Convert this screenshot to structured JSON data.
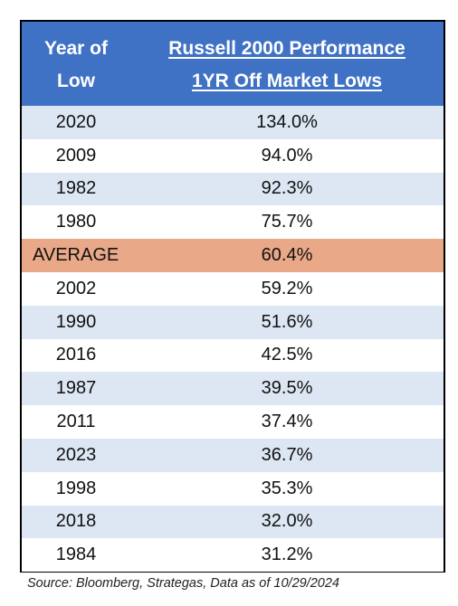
{
  "header": {
    "col1_line1": "Year of",
    "col1_line2": "Low",
    "col2_line1": "Russell 2000 Performance",
    "col2_line2": "1YR Off Market Lows"
  },
  "rows": [
    {
      "year": "2020",
      "value": "134.0%",
      "style": "shaded"
    },
    {
      "year": "2009",
      "value": "94.0%",
      "style": "plain"
    },
    {
      "year": "1982",
      "value": "92.3%",
      "style": "shaded"
    },
    {
      "year": "1980",
      "value": "75.7%",
      "style": "plain"
    },
    {
      "year": "AVERAGE",
      "value": "60.4%",
      "style": "avg"
    },
    {
      "year": "2002",
      "value": "59.2%",
      "style": "plain"
    },
    {
      "year": "1990",
      "value": "51.6%",
      "style": "shaded"
    },
    {
      "year": "2016",
      "value": "42.5%",
      "style": "plain"
    },
    {
      "year": "1987",
      "value": "39.5%",
      "style": "shaded"
    },
    {
      "year": "2011",
      "value": "37.4%",
      "style": "plain"
    },
    {
      "year": "2023",
      "value": "36.7%",
      "style": "shaded"
    },
    {
      "year": "1998",
      "value": "35.3%",
      "style": "plain"
    },
    {
      "year": "2018",
      "value": "32.0%",
      "style": "shaded"
    },
    {
      "year": "1984",
      "value": "31.2%",
      "style": "plain"
    }
  ],
  "source": "Source: Bloomberg, Strategas, Data as of 10/29/2024",
  "colors": {
    "header_bg": "#3f72c4",
    "shaded_row": "#dde7f4",
    "average_row": "#e9a887"
  }
}
